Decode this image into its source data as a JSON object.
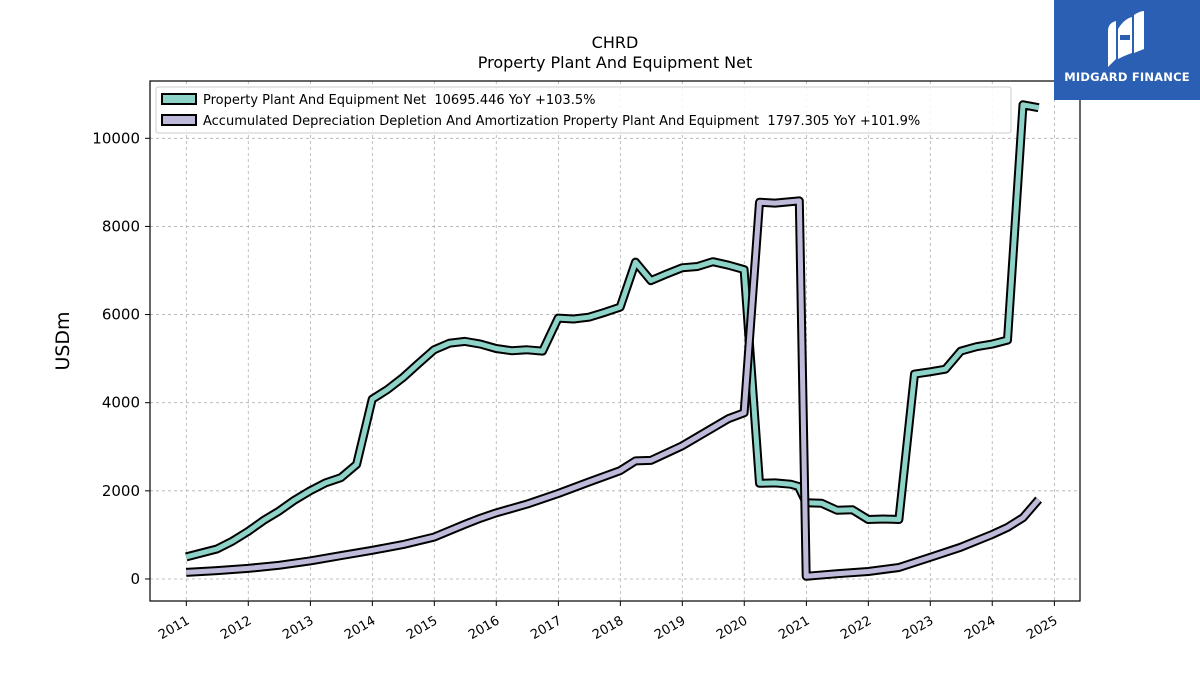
{
  "chart_data": {
    "type": "line",
    "title": "CHRD",
    "subtitle": "Property Plant And Equipment Net",
    "xlabel": "",
    "ylabel": "USDm",
    "ylim": [
      -500,
      11300
    ],
    "xlim": [
      "2010-06-01",
      "2025-06-01"
    ],
    "yticks": [
      0,
      2000,
      4000,
      6000,
      8000,
      10000
    ],
    "xticks": [
      "2011",
      "2012",
      "2013",
      "2014",
      "2015",
      "2016",
      "2017",
      "2018",
      "2019",
      "2020",
      "2021",
      "2022",
      "2023",
      "2024",
      "2025"
    ],
    "grid": true,
    "legend_position": "top-left",
    "series": [
      {
        "name": "Property Plant And Equipment Net  10695.446 YoY +103.5%",
        "color": "#8dd3c7",
        "points": [
          [
            "2010-12-31",
            500
          ],
          [
            "2011-06-30",
            680
          ],
          [
            "2011-09-30",
            860
          ],
          [
            "2011-12-31",
            1080
          ],
          [
            "2012-03-31",
            1330
          ],
          [
            "2012-06-30",
            1540
          ],
          [
            "2012-09-30",
            1790
          ],
          [
            "2012-12-31",
            2000
          ],
          [
            "2013-03-31",
            2180
          ],
          [
            "2013-06-30",
            2300
          ],
          [
            "2013-09-30",
            2600
          ],
          [
            "2013-12-31",
            4080
          ],
          [
            "2014-03-31",
            4300
          ],
          [
            "2014-06-30",
            4570
          ],
          [
            "2014-09-30",
            4890
          ],
          [
            "2014-12-31",
            5200
          ],
          [
            "2015-03-31",
            5350
          ],
          [
            "2015-06-30",
            5390
          ],
          [
            "2015-09-30",
            5330
          ],
          [
            "2015-12-31",
            5230
          ],
          [
            "2016-03-31",
            5180
          ],
          [
            "2016-06-30",
            5200
          ],
          [
            "2016-09-30",
            5170
          ],
          [
            "2016-12-31",
            5920
          ],
          [
            "2017-03-31",
            5900
          ],
          [
            "2017-06-30",
            5940
          ],
          [
            "2017-09-30",
            6050
          ],
          [
            "2017-12-31",
            6170
          ],
          [
            "2018-03-31",
            7190
          ],
          [
            "2018-06-30",
            6770
          ],
          [
            "2018-09-30",
            6920
          ],
          [
            "2018-12-31",
            7060
          ],
          [
            "2019-03-31",
            7090
          ],
          [
            "2019-06-30",
            7200
          ],
          [
            "2019-09-30",
            7120
          ],
          [
            "2019-12-31",
            7020
          ],
          [
            "2020-03-31",
            2170
          ],
          [
            "2020-06-30",
            2180
          ],
          [
            "2020-09-30",
            2150
          ],
          [
            "2020-11-15",
            2100
          ],
          [
            "2020-12-31",
            1730
          ],
          [
            "2021-03-31",
            1720
          ],
          [
            "2021-06-30",
            1560
          ],
          [
            "2021-09-30",
            1570
          ],
          [
            "2021-12-31",
            1350
          ],
          [
            "2022-03-31",
            1360
          ],
          [
            "2022-06-30",
            1350
          ],
          [
            "2022-09-30",
            4650
          ],
          [
            "2022-12-31",
            4700
          ],
          [
            "2023-03-31",
            4760
          ],
          [
            "2023-06-30",
            5170
          ],
          [
            "2023-09-30",
            5270
          ],
          [
            "2023-12-31",
            5330
          ],
          [
            "2024-03-31",
            5420
          ],
          [
            "2024-06-30",
            10760
          ],
          [
            "2024-09-30",
            10695
          ]
        ]
      },
      {
        "name": "Accumulated Depreciation Depletion And Amortization Property Plant And Equipment  1797.305 YoY +101.9%",
        "color": "#bebada",
        "points": [
          [
            "2010-12-31",
            150
          ],
          [
            "2011-06-30",
            190
          ],
          [
            "2011-12-31",
            240
          ],
          [
            "2012-06-30",
            310
          ],
          [
            "2012-12-31",
            410
          ],
          [
            "2013-06-30",
            530
          ],
          [
            "2013-12-31",
            650
          ],
          [
            "2014-06-30",
            780
          ],
          [
            "2014-12-31",
            950
          ],
          [
            "2015-06-30",
            1240
          ],
          [
            "2015-09-30",
            1380
          ],
          [
            "2015-12-31",
            1500
          ],
          [
            "2016-06-30",
            1700
          ],
          [
            "2016-12-31",
            1940
          ],
          [
            "2017-06-30",
            2200
          ],
          [
            "2017-12-31",
            2460
          ],
          [
            "2018-03-31",
            2680
          ],
          [
            "2018-06-30",
            2690
          ],
          [
            "2018-12-31",
            3020
          ],
          [
            "2019-06-30",
            3430
          ],
          [
            "2019-09-30",
            3640
          ],
          [
            "2019-12-31",
            3770
          ],
          [
            "2020-03-31",
            8550
          ],
          [
            "2020-06-30",
            8530
          ],
          [
            "2020-11-20",
            8580
          ],
          [
            "2020-12-31",
            60
          ],
          [
            "2021-06-30",
            120
          ],
          [
            "2021-12-31",
            170
          ],
          [
            "2022-06-30",
            260
          ],
          [
            "2022-12-31",
            490
          ],
          [
            "2023-06-30",
            720
          ],
          [
            "2023-12-31",
            1010
          ],
          [
            "2024-03-31",
            1170
          ],
          [
            "2024-06-30",
            1390
          ],
          [
            "2024-09-30",
            1800
          ]
        ]
      }
    ]
  },
  "brand": {
    "name": "MIDGARD FINANCE",
    "background": "#2b5fb4"
  }
}
